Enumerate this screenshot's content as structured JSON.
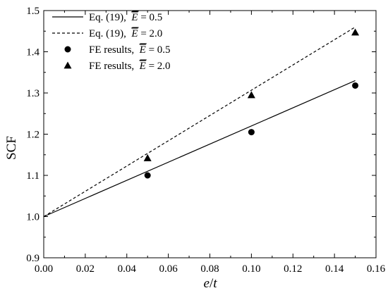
{
  "chart_data": {
    "type": "line",
    "xlabel_var": "e",
    "xlabel_sep": "/",
    "xlabel_var2": "t",
    "ylabel": "SCF",
    "xlim": [
      0.0,
      0.16
    ],
    "ylim": [
      0.9,
      1.5
    ],
    "xticks": [
      "0.00",
      "0.02",
      "0.04",
      "0.06",
      "0.08",
      "0.10",
      "0.12",
      "0.14",
      "0.16"
    ],
    "yticks": [
      "0.9",
      "1.0",
      "1.1",
      "1.2",
      "1.3",
      "1.4",
      "1.5"
    ],
    "grid": false,
    "legend_position": "top-left",
    "series": [
      {
        "legend_prefix": "Eq. (19),",
        "legend_value": "= 0.5",
        "style": "solid",
        "marker": "none",
        "x": [
          0.0,
          0.15
        ],
        "y": [
          1.0,
          1.33
        ]
      },
      {
        "legend_prefix": "Eq. (19),",
        "legend_value": "= 2.0",
        "style": "dashed",
        "marker": "none",
        "x": [
          0.0,
          0.15
        ],
        "y": [
          1.0,
          1.46
        ]
      },
      {
        "legend_prefix": "FE results,",
        "legend_value": "= 0.5",
        "style": "none",
        "marker": "circle",
        "x": [
          0.05,
          0.1,
          0.15
        ],
        "y": [
          1.1,
          1.205,
          1.318
        ]
      },
      {
        "legend_prefix": "FE results,",
        "legend_value": "= 2.0",
        "style": "none",
        "marker": "triangle",
        "x": [
          0.05,
          0.1,
          0.15
        ],
        "y": [
          1.142,
          1.295,
          1.447
        ]
      }
    ],
    "legend_symbol": "E"
  }
}
